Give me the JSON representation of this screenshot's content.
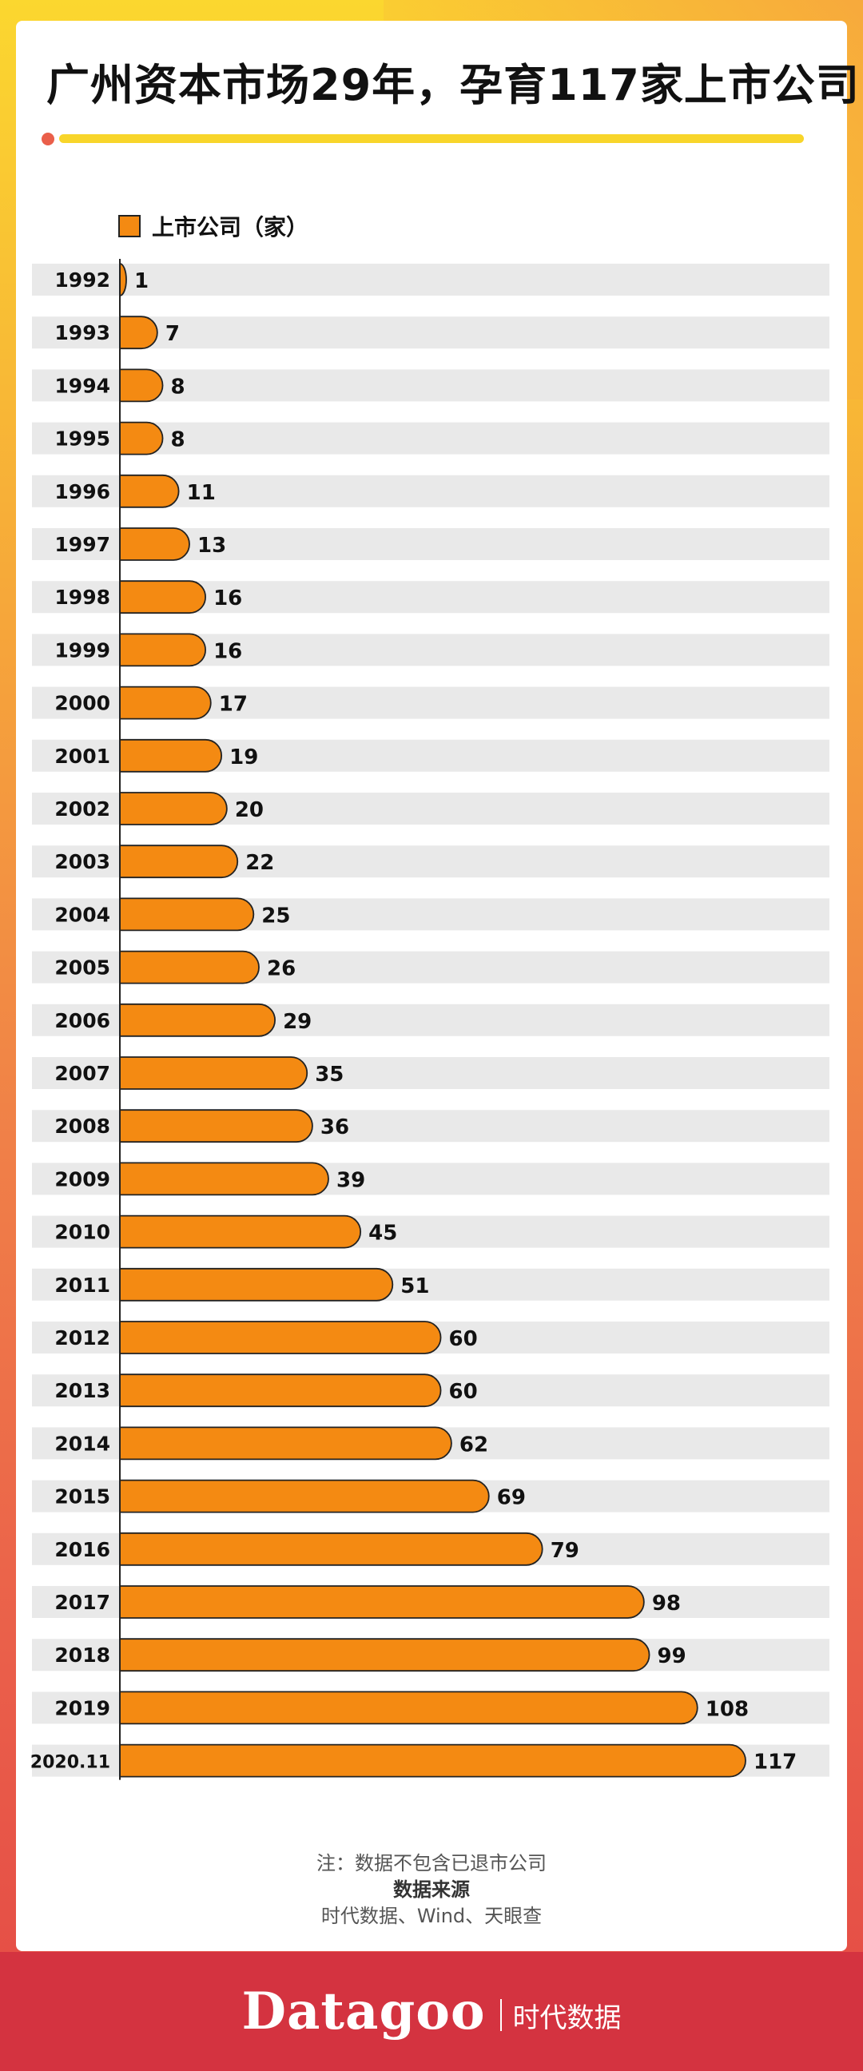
{
  "title": "广州资本市场29年，孕育117家上市公司",
  "colors": {
    "bar": "#f48a12",
    "row_band": "#e9e9e9",
    "footer": "#d43340"
  },
  "chart_data": {
    "type": "bar",
    "orientation": "horizontal",
    "legend": [
      "上市公司（家）"
    ],
    "categories": [
      "1992",
      "1993",
      "1994",
      "1995",
      "1996",
      "1997",
      "1998",
      "1999",
      "2000",
      "2001",
      "2002",
      "2003",
      "2004",
      "2005",
      "2006",
      "2007",
      "2008",
      "2009",
      "2010",
      "2011",
      "2012",
      "2013",
      "2014",
      "2015",
      "2016",
      "2017",
      "2018",
      "2019",
      "2020.11"
    ],
    "values": [
      1,
      7,
      8,
      8,
      11,
      13,
      16,
      16,
      17,
      19,
      20,
      22,
      25,
      26,
      29,
      35,
      36,
      39,
      45,
      51,
      60,
      60,
      62,
      69,
      79,
      98,
      99,
      108,
      117
    ],
    "xlim": [
      0,
      117
    ],
    "grid": false,
    "legend_position": "top-left"
  },
  "notes": {
    "note": "注：数据不包含已退市公司",
    "source_label": "数据来源",
    "source": "时代数据、Wind、天眼查"
  },
  "footer": {
    "brand": "Datagoo",
    "brand_cn": "时代数据"
  }
}
